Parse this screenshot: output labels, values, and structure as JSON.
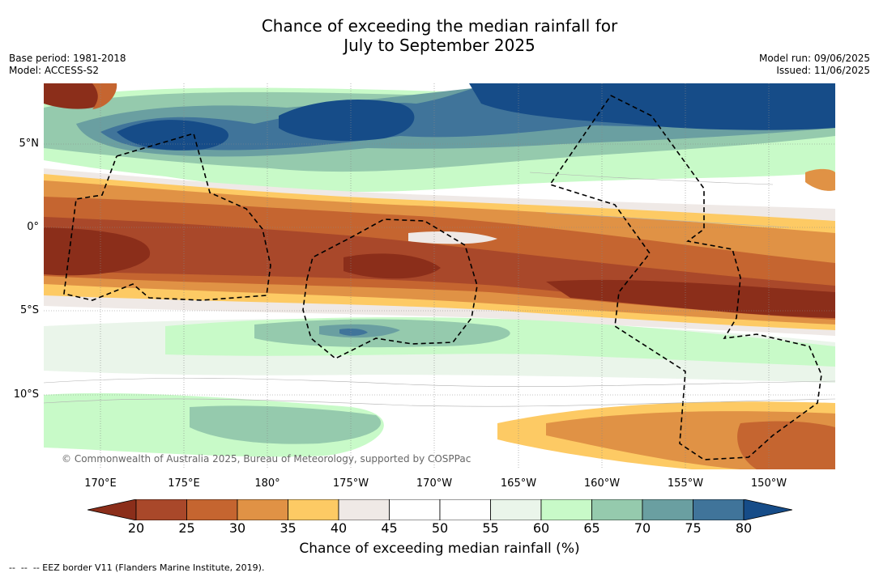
{
  "title_line1": "Chance of exceeding the median rainfall for",
  "title_line2": "July to September 2025",
  "meta_left": {
    "base_period": "Base period: 1981-2018",
    "model": "Model: ACCESS-S2"
  },
  "meta_right": {
    "model_run": "Model run: 09/06/2025",
    "issued": "Issued: 11/06/2025"
  },
  "copyright": "© Commonwealth of Australia 2025, Bureau of Meteorology, supported by COSPPac",
  "lat_labels": [
    "5°N",
    "0°",
    "5°S",
    "10°S"
  ],
  "lon_labels": [
    "170°E",
    "175°E",
    "180°",
    "175°W",
    "170°W",
    "165°W",
    "160°W",
    "155°W",
    "150°W"
  ],
  "colorbar": {
    "ticks": [
      "20",
      "25",
      "30",
      "35",
      "40",
      "45",
      "50",
      "55",
      "60",
      "65",
      "70",
      "75",
      "80"
    ],
    "label": "Chance of exceeding median rainfall (%)",
    "colors": [
      "#8b2e1a",
      "#a9482a",
      "#c56530",
      "#e09245",
      "#fdca64",
      "#efe9e6",
      "#ffffff",
      "#ffffff",
      "#eaf5ea",
      "#c8fac8",
      "#95caad",
      "#6a9fa1",
      "#40749a",
      "#164c88"
    ]
  },
  "footnote": "--  --  -- EEZ border V11 (Flanders Marine Institute, 2019)."
}
